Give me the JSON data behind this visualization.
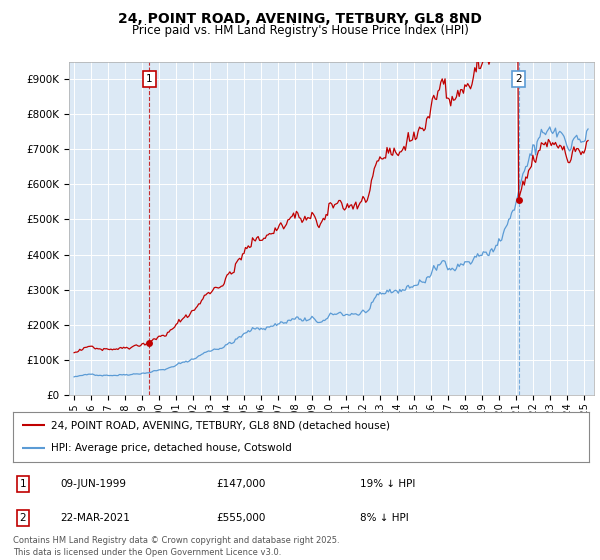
{
  "title": "24, POINT ROAD, AVENING, TETBURY, GL8 8ND",
  "subtitle": "Price paid vs. HM Land Registry's House Price Index (HPI)",
  "title_fontsize": 10,
  "subtitle_fontsize": 8.5,
  "ylim": [
    0,
    950000
  ],
  "yticks": [
    0,
    100000,
    200000,
    300000,
    400000,
    500000,
    600000,
    700000,
    800000,
    900000
  ],
  "ytick_labels": [
    "£0",
    "£100K",
    "£200K",
    "£300K",
    "£400K",
    "£500K",
    "£600K",
    "£700K",
    "£800K",
    "£900K"
  ],
  "hpi_color": "#5b9bd5",
  "price_color": "#c00000",
  "vline1_color": "#c00000",
  "vline2_color": "#5b9bd5",
  "legend_label1": "24, POINT ROAD, AVENING, TETBURY, GL8 8ND (detached house)",
  "legend_label2": "HPI: Average price, detached house, Cotswold",
  "table_row1": [
    "1",
    "09-JUN-1999",
    "£147,000",
    "19% ↓ HPI"
  ],
  "table_row2": [
    "2",
    "22-MAR-2021",
    "£555,000",
    "8% ↓ HPI"
  ],
  "footer": "Contains HM Land Registry data © Crown copyright and database right 2025.\nThis data is licensed under the Open Government Licence v3.0.",
  "background_color": "#ffffff",
  "chart_bg_color": "#dce9f5",
  "grid_color": "#ffffff"
}
